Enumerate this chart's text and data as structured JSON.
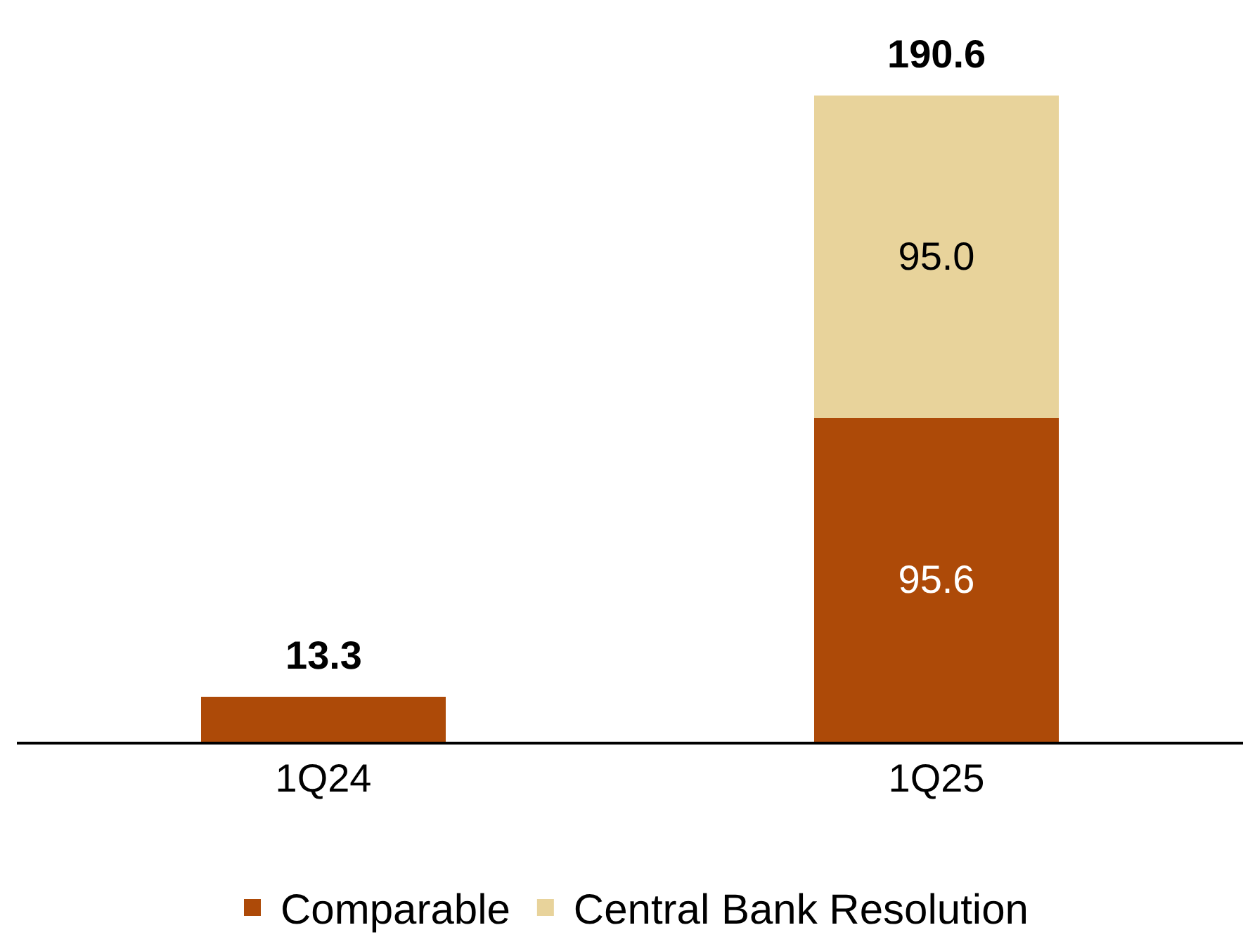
{
  "chart_data": {
    "type": "bar",
    "stacked": true,
    "categories": [
      "1Q24",
      "1Q25"
    ],
    "series": [
      {
        "name": "Comparable",
        "color": "#ad4a08",
        "values": [
          13.3,
          95.6
        ],
        "value_labels": [
          null,
          "95.6"
        ]
      },
      {
        "name": "Central Bank Resolution",
        "color": "#e8d39b",
        "values": [
          null,
          95.0
        ],
        "value_labels": [
          null,
          "95.0"
        ]
      }
    ],
    "totals": [
      "13.3",
      "190.6"
    ],
    "legend": "bottom"
  }
}
